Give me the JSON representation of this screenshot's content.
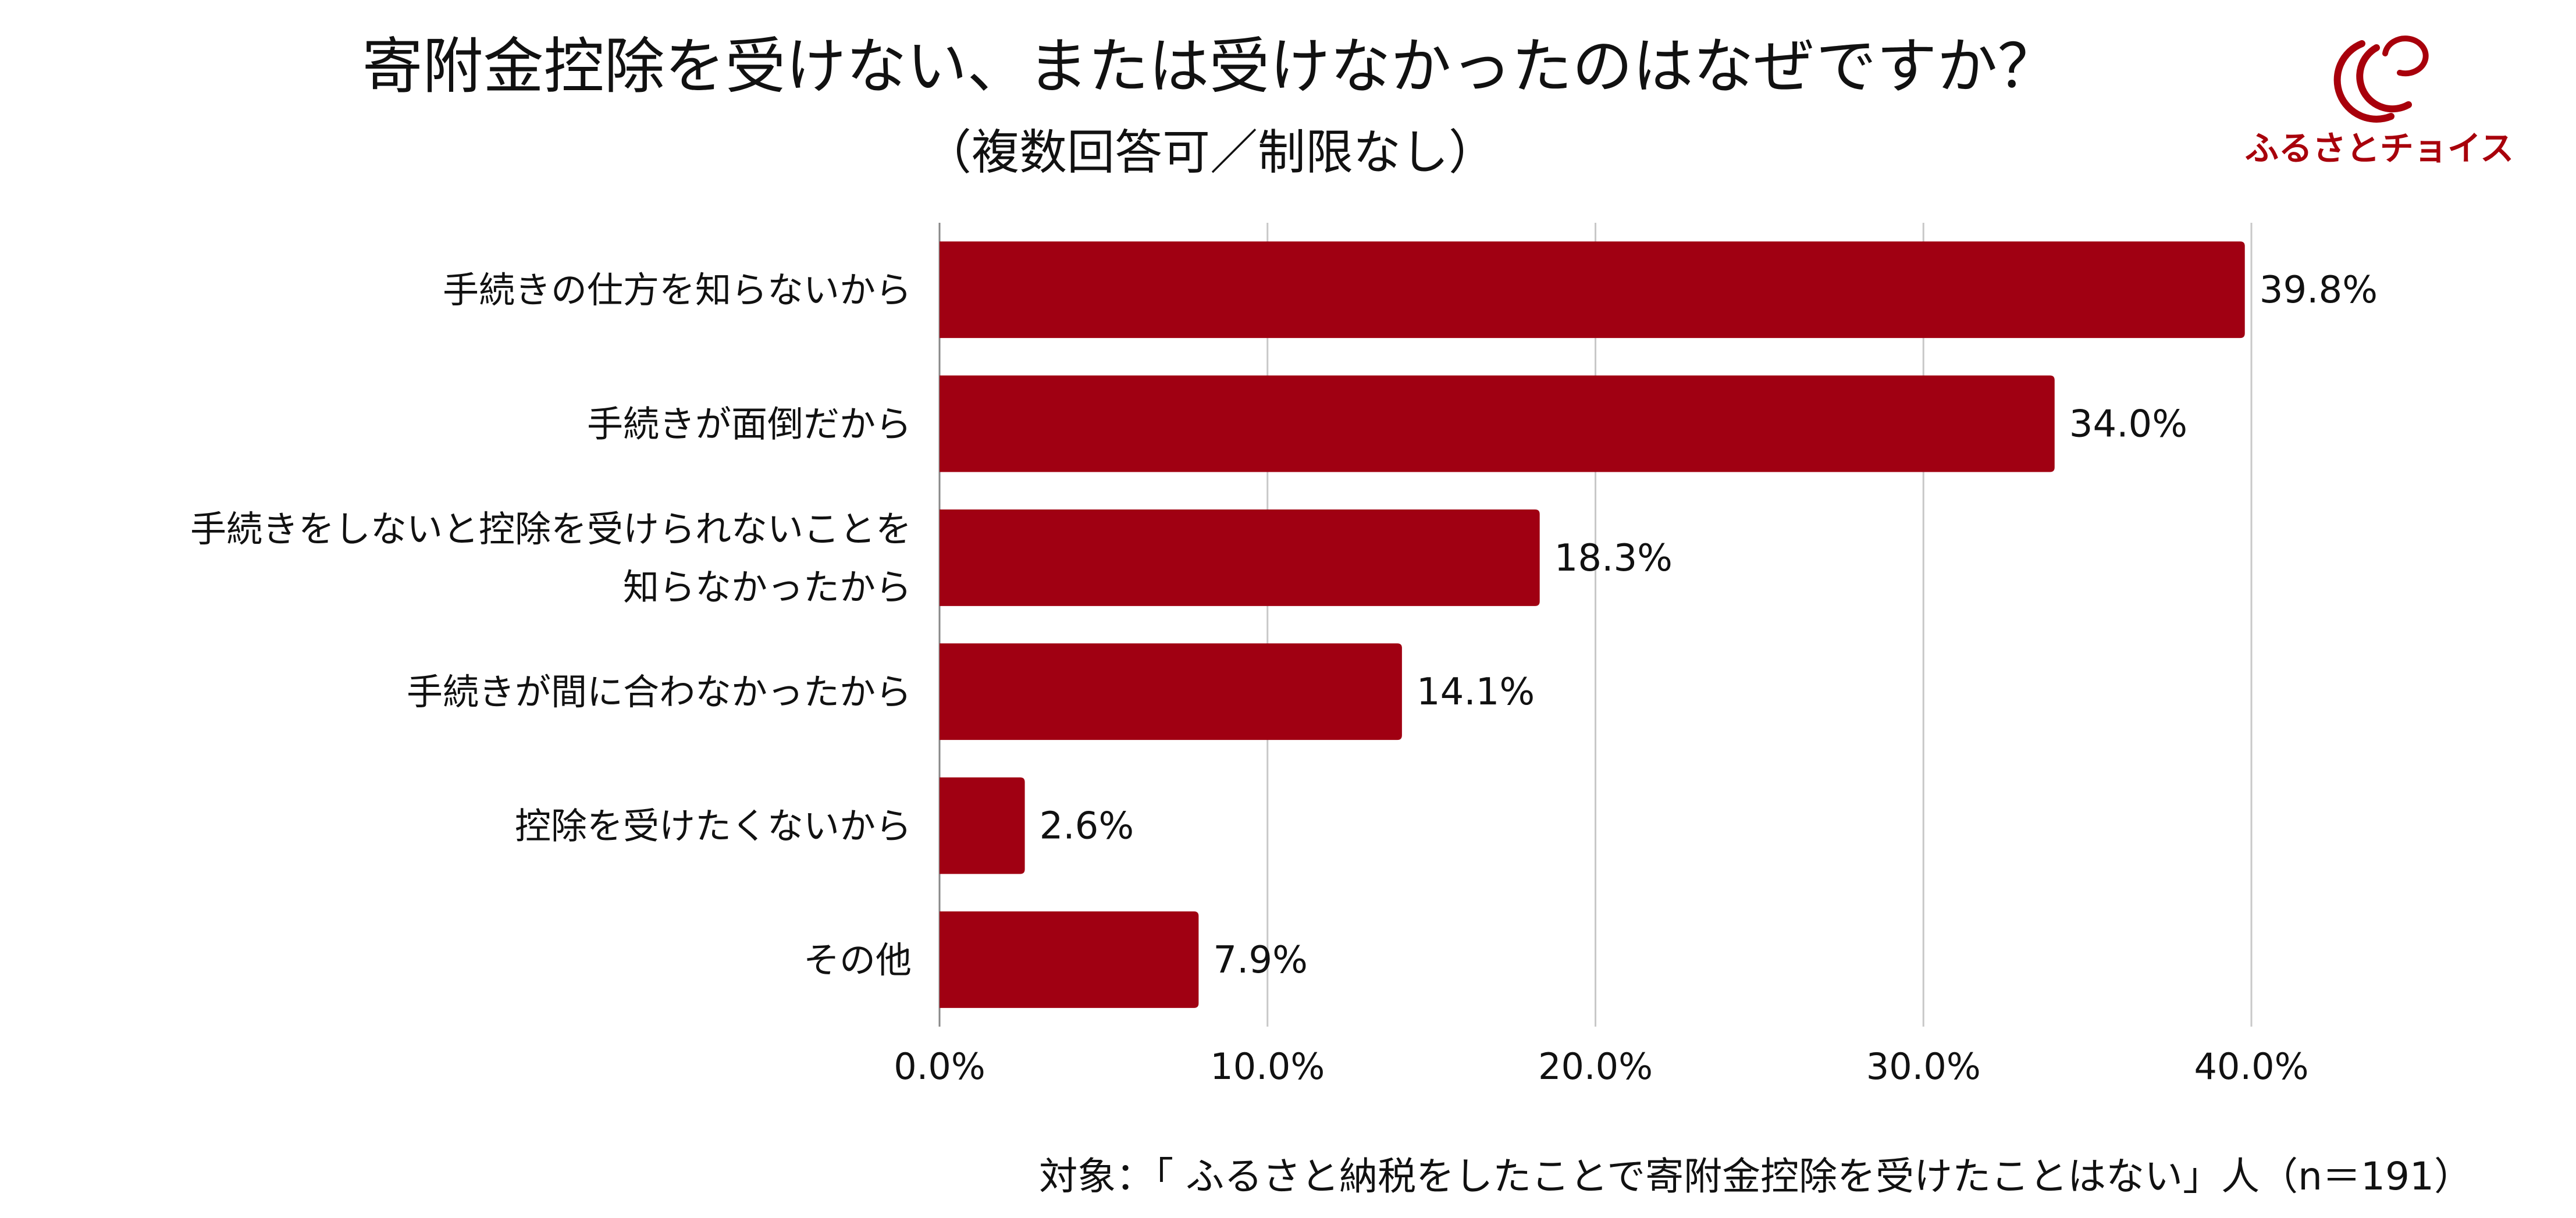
{
  "chart_data": {
    "type": "bar",
    "orientation": "horizontal",
    "title": "寄附金控除を受けない、または受けなかったのはなぜですか？",
    "subtitle": "（複数回答可／制限なし）",
    "categories": [
      [
        "手続きの仕方を知らないから"
      ],
      [
        "手続きが面倒だから"
      ],
      [
        "手続きをしないと控除を受けられないことを",
        "知らなかったから"
      ],
      [
        "手続きが間に合わなかったから"
      ],
      [
        "控除を受けたくないから"
      ],
      [
        "その他"
      ]
    ],
    "values": [
      39.8,
      34.0,
      18.3,
      14.1,
      2.6,
      7.9
    ],
    "value_labels": [
      "39.8%",
      "34.0%",
      "18.3%",
      "14.1%",
      "2.6%",
      "7.9%"
    ],
    "xlim": [
      0,
      40
    ],
    "xticks": [
      0,
      10,
      20,
      30,
      40
    ],
    "xtick_labels": [
      "0.0%",
      "10.0%",
      "20.0%",
      "30.0%",
      "40.0%"
    ],
    "grid": true,
    "bar_color": "#a00012",
    "footnote": "対象：「 ふるさと納税をしたことで寄附金控除を受けたことはない」人（n＝191）"
  },
  "logo": {
    "text": "ふるさとチョイス",
    "color": "#a8000b"
  }
}
